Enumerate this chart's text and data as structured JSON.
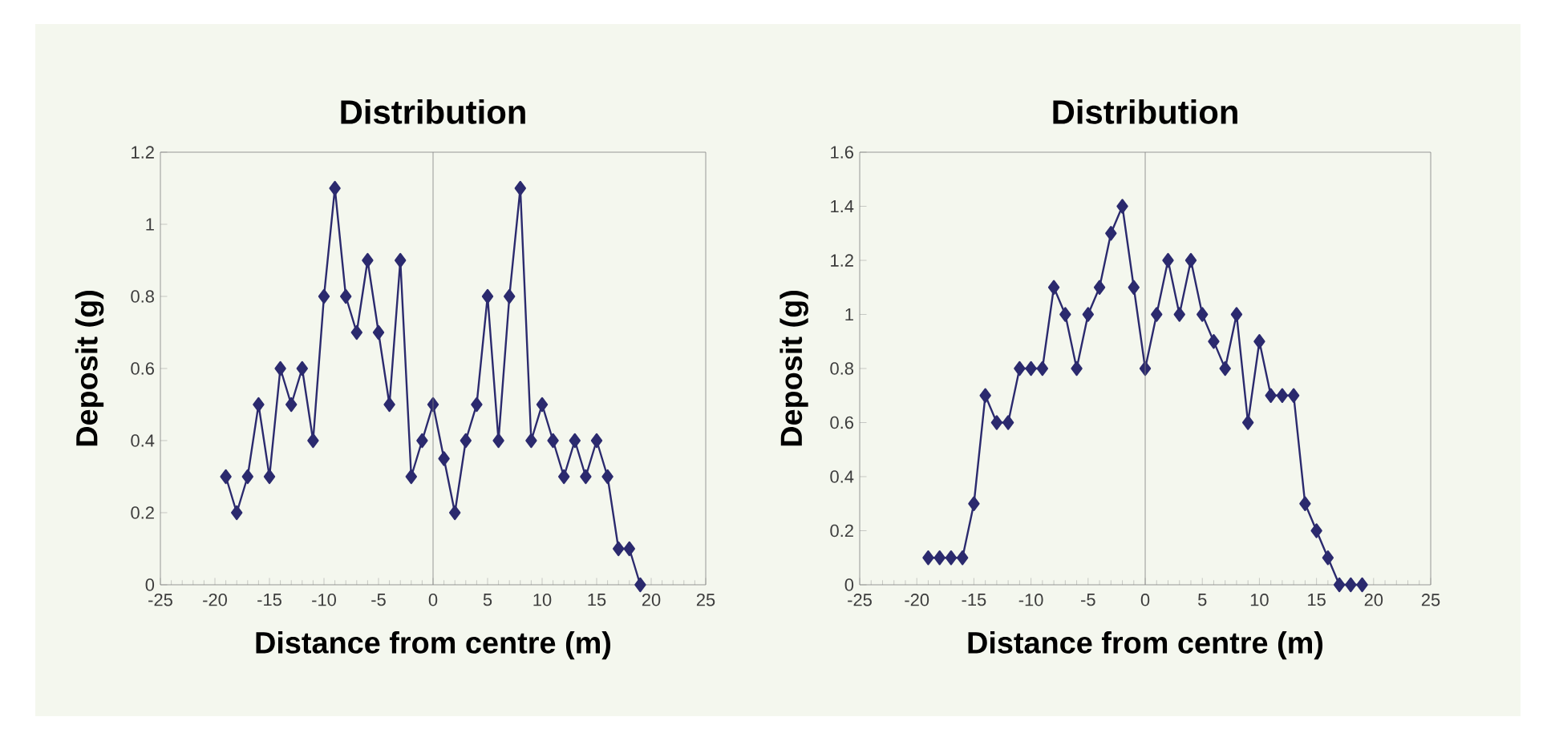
{
  "chart_data": [
    {
      "type": "line",
      "title": "Distribution",
      "xlabel": "Distance from centre (m)",
      "ylabel": "Deposit (g)",
      "color": "#2b2a6e",
      "marker": "diamond",
      "grid": false,
      "ref_lines": [
        {
          "axis": "x",
          "value": 0
        }
      ],
      "xlim": [
        -25,
        25
      ],
      "xticks": [
        -25,
        -20,
        -15,
        -10,
        -5,
        0,
        5,
        10,
        15,
        20,
        25
      ],
      "ylim": [
        0,
        1.2
      ],
      "yticks": [
        0,
        0.2,
        0.4,
        0.6,
        0.8,
        1,
        1.2
      ],
      "x": [
        -19,
        -18,
        -17,
        -16,
        -15,
        -14,
        -13,
        -12,
        -11,
        -10,
        -9,
        -8,
        -7,
        -6,
        -5,
        -4,
        -3,
        -2,
        -1,
        0,
        1,
        2,
        3,
        4,
        5,
        6,
        7,
        8,
        9,
        10,
        11,
        12,
        13,
        14,
        15,
        16,
        17,
        18,
        19
      ],
      "values": [
        0.3,
        0.2,
        0.3,
        0.5,
        0.3,
        0.6,
        0.5,
        0.6,
        0.4,
        0.8,
        1.1,
        0.8,
        0.7,
        0.9,
        0.7,
        0.5,
        0.9,
        0.3,
        0.4,
        0.5,
        0.35,
        0.2,
        0.4,
        0.5,
        0.8,
        0.4,
        0.8,
        1.1,
        0.4,
        0.5,
        0.4,
        0.3,
        0.4,
        0.3,
        0.4,
        0.3,
        0.1,
        0.1,
        0
      ]
    },
    {
      "type": "line",
      "title": "Distribution",
      "xlabel": "Distance from centre (m)",
      "ylabel": "Deposit (g)",
      "color": "#2b2a6e",
      "marker": "diamond",
      "grid": false,
      "ref_lines": [
        {
          "axis": "x",
          "value": 0
        }
      ],
      "xlim": [
        -25,
        25
      ],
      "xticks": [
        -25,
        -20,
        -15,
        -10,
        -5,
        0,
        5,
        10,
        15,
        20,
        25
      ],
      "ylim": [
        0,
        1.6
      ],
      "yticks": [
        0,
        0.2,
        0.4,
        0.6,
        0.8,
        1,
        1.2,
        1.4,
        1.6
      ],
      "x": [
        -19,
        -18,
        -17,
        -16,
        -15,
        -14,
        -13,
        -12,
        -11,
        -10,
        -9,
        -8,
        -7,
        -6,
        -5,
        -4,
        -3,
        -2,
        -1,
        0,
        1,
        2,
        3,
        4,
        5,
        6,
        7,
        8,
        9,
        10,
        11,
        12,
        13,
        14,
        15,
        16,
        17,
        18,
        19
      ],
      "values": [
        0.1,
        0.1,
        0.1,
        0.1,
        0.3,
        0.7,
        0.6,
        0.6,
        0.8,
        0.8,
        0.8,
        1.1,
        1.0,
        0.8,
        1.0,
        1.1,
        1.3,
        1.4,
        1.1,
        0.8,
        1.0,
        1.2,
        1.0,
        1.2,
        1.0,
        0.9,
        0.8,
        1.0,
        0.6,
        0.9,
        0.7,
        0.7,
        0.7,
        0.3,
        0.2,
        0.1,
        0,
        0,
        0
      ]
    }
  ]
}
